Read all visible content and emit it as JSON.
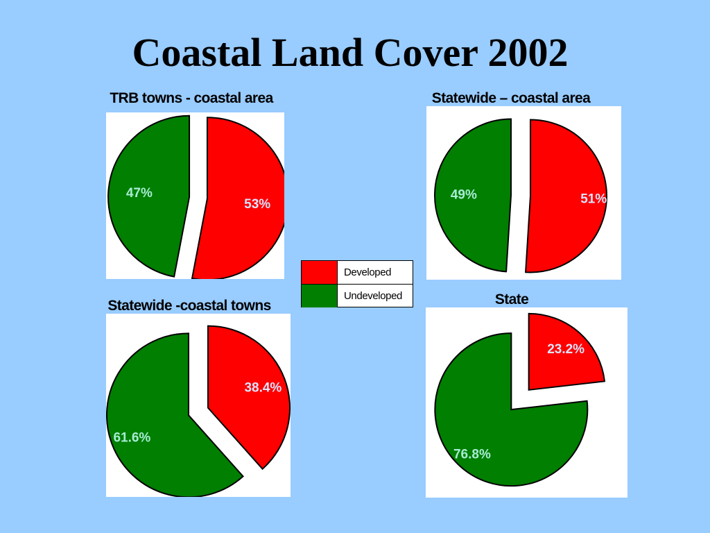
{
  "title": "Coastal Land Cover 2002",
  "colors": {
    "background": "#99ccff",
    "developed": "#ff0000",
    "undeveloped": "#007f00",
    "label_on_red": "#dde4ff",
    "label_on_green": "#a8ecd4"
  },
  "legend": [
    {
      "label": "Developed",
      "color": "#ff0000"
    },
    {
      "label": "Undeveloped",
      "color": "#007f00"
    }
  ],
  "chart_data": [
    {
      "type": "pie",
      "title": "TRB towns - coastal area",
      "slices": [
        {
          "category": "Developed",
          "value": 53,
          "label": "53%"
        },
        {
          "category": "Undeveloped",
          "value": 47,
          "label": "47%"
        }
      ]
    },
    {
      "type": "pie",
      "title": "Statewide – coastal area",
      "slices": [
        {
          "category": "Developed",
          "value": 51,
          "label": "51%"
        },
        {
          "category": "Undeveloped",
          "value": 49,
          "label": "49%"
        }
      ]
    },
    {
      "type": "pie",
      "title": "Statewide -coastal towns",
      "slices": [
        {
          "category": "Developed",
          "value": 38.4,
          "label": "38.4%"
        },
        {
          "category": "Undeveloped",
          "value": 61.6,
          "label": "61.6%"
        }
      ]
    },
    {
      "type": "pie",
      "title": "State",
      "slices": [
        {
          "category": "Developed",
          "value": 23.2,
          "label": "23.2%"
        },
        {
          "category": "Undeveloped",
          "value": 76.8,
          "label": "76.8%"
        }
      ]
    }
  ]
}
